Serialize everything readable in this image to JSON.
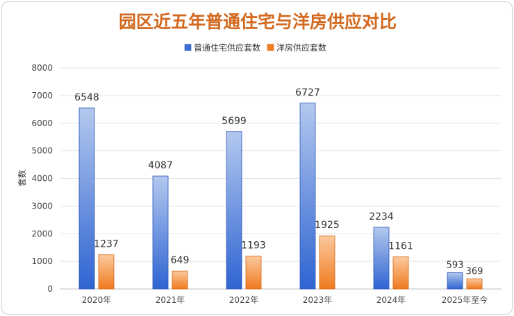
{
  "chart_data": {
    "type": "bar",
    "title": "园区近五年普通住宅与洋房供应对比",
    "xlabel": "",
    "ylabel": "套数",
    "ylim": [
      0,
      8000
    ],
    "yticks": [
      "0",
      "1000",
      "2000",
      "3000",
      "4000",
      "5000",
      "6000",
      "7000",
      "8000"
    ],
    "grid": true,
    "legend_position": "top-center",
    "categories": [
      "2020年",
      "2021年",
      "2022年",
      "2023年",
      "2024年",
      "2025年至今"
    ],
    "series": [
      {
        "name": "普通住宅供应套数",
        "values": [
          6548,
          4087,
          5699,
          6727,
          2234,
          593
        ],
        "color": "#3b6fd6"
      },
      {
        "name": "洋房供应套数",
        "values": [
          1237,
          649,
          1193,
          1925,
          1161,
          369
        ],
        "color": "#f07c24"
      }
    ]
  }
}
